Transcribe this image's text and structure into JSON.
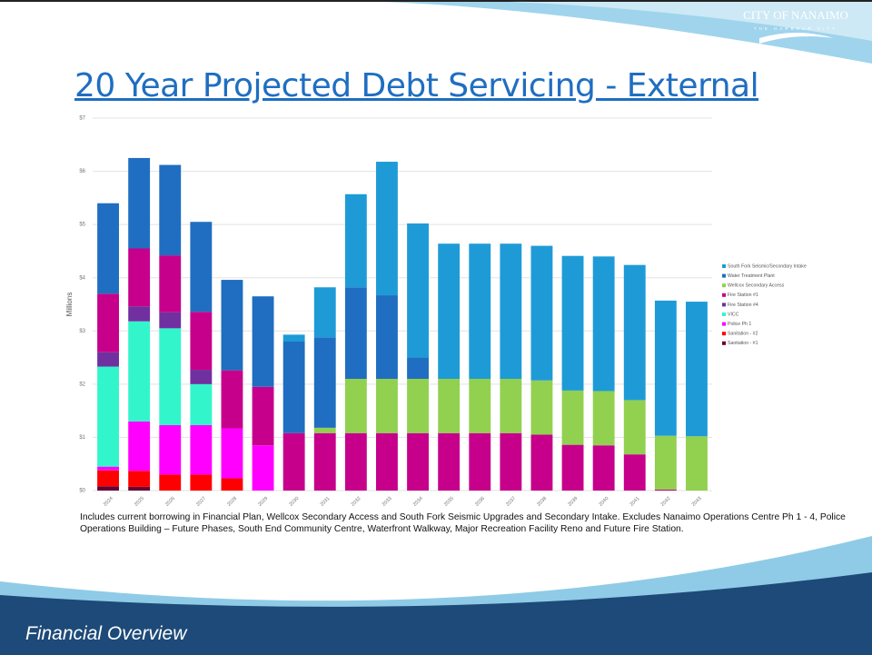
{
  "slide_title": "20 Year Projected Debt Servicing - External",
  "logo": {
    "name": "CITY OF NANAIMO",
    "tagline": "THE HARBOUR CITY"
  },
  "chart_data": {
    "type": "stacked_bar",
    "y_label": "Millions",
    "categories": [
      "2024",
      "2025",
      "2026",
      "2027",
      "2028",
      "2029",
      "2030",
      "2031",
      "2032",
      "2033",
      "2034",
      "2035",
      "2036",
      "2037",
      "2038",
      "2039",
      "2040",
      "2041",
      "2042",
      "2043"
    ],
    "ylim": [
      0,
      7
    ],
    "yticks": [
      {
        "value": 0,
        "label": "$0"
      },
      {
        "value": 1,
        "label": "$1"
      },
      {
        "value": 2,
        "label": "$2"
      },
      {
        "value": 3,
        "label": "$3"
      },
      {
        "value": 4,
        "label": "$4"
      },
      {
        "value": 5,
        "label": "$5"
      },
      {
        "value": 6,
        "label": "$6"
      },
      {
        "value": 7,
        "label": "$7"
      }
    ],
    "grid": true,
    "legend": "right",
    "series": [
      {
        "name": "South Fork Seismic/Secondary Intake",
        "color": "#1e9bd7",
        "values": [
          0,
          0,
          0,
          0,
          0,
          0,
          0.13,
          0.94,
          1.75,
          2.51,
          2.52,
          2.54,
          2.54,
          2.54,
          2.53,
          2.53,
          2.53,
          2.54,
          2.54,
          2.53
        ]
      },
      {
        "name": "Water Treatment Plant",
        "color": "#1f6ec1",
        "values": [
          1.7,
          1.7,
          1.7,
          1.69,
          1.7,
          1.7,
          1.72,
          1.7,
          1.72,
          1.57,
          0.4,
          0,
          0,
          0,
          0,
          0,
          0,
          0,
          0,
          0
        ]
      },
      {
        "name": "Wellcox Secondary Access",
        "color": "#92d050",
        "values": [
          0,
          0,
          0,
          0,
          0,
          0,
          0,
          0.1,
          1.02,
          1.02,
          1.02,
          1.02,
          1.02,
          1.02,
          1.02,
          1.02,
          1.02,
          1.02,
          1.01,
          1.02
        ]
      },
      {
        "name": "Fire Station #1",
        "color": "#c6008b",
        "values": [
          1.1,
          1.09,
          1.07,
          1.09,
          1.09,
          1.1,
          1.08,
          1.08,
          1.08,
          1.08,
          1.08,
          1.08,
          1.08,
          1.08,
          1.05,
          0.86,
          0.85,
          0.68,
          0.02,
          0
        ]
      },
      {
        "name": "Fire Station #4",
        "color": "#7030a0",
        "values": [
          0.27,
          0.28,
          0.3,
          0.27,
          0,
          0,
          0,
          0,
          0,
          0,
          0,
          0,
          0,
          0,
          0,
          0,
          0,
          0,
          0,
          0
        ]
      },
      {
        "name": "VICC",
        "color": "#33f5cc",
        "values": [
          1.88,
          1.88,
          1.82,
          0.77,
          0,
          0,
          0,
          0,
          0,
          0,
          0,
          0,
          0,
          0,
          0,
          0,
          0,
          0,
          0,
          0
        ]
      },
      {
        "name": "Police Ph 1",
        "color": "#ff00ff",
        "values": [
          0.07,
          0.93,
          0.93,
          0.93,
          0.94,
          0.85,
          0,
          0,
          0,
          0,
          0,
          0,
          0,
          0,
          0,
          0,
          0,
          0,
          0,
          0
        ]
      },
      {
        "name": "Sanitation - #2",
        "color": "#ff0000",
        "values": [
          0.3,
          0.3,
          0.3,
          0.3,
          0.23,
          0,
          0,
          0,
          0,
          0,
          0,
          0,
          0,
          0,
          0,
          0,
          0,
          0,
          0,
          0
        ]
      },
      {
        "name": "Sanitation - #1",
        "color": "#660033",
        "values": [
          0.08,
          0.07,
          0,
          0,
          0,
          0,
          0,
          0,
          0,
          0,
          0,
          0,
          0,
          0,
          0,
          0,
          0,
          0,
          0,
          0
        ]
      }
    ]
  },
  "footnote": "Includes current borrowing in Financial Plan, Wellcox Secondary Access and South Fork Seismic Upgrades and Secondary Intake. Excludes Nanaimo Operations Centre Ph 1 - 4, Police Operations Building – Future Phases, South End Community Centre, Waterfront Walkway, Major Recreation Facility Reno and Future Fire Station.",
  "footer": "Financial Overview"
}
